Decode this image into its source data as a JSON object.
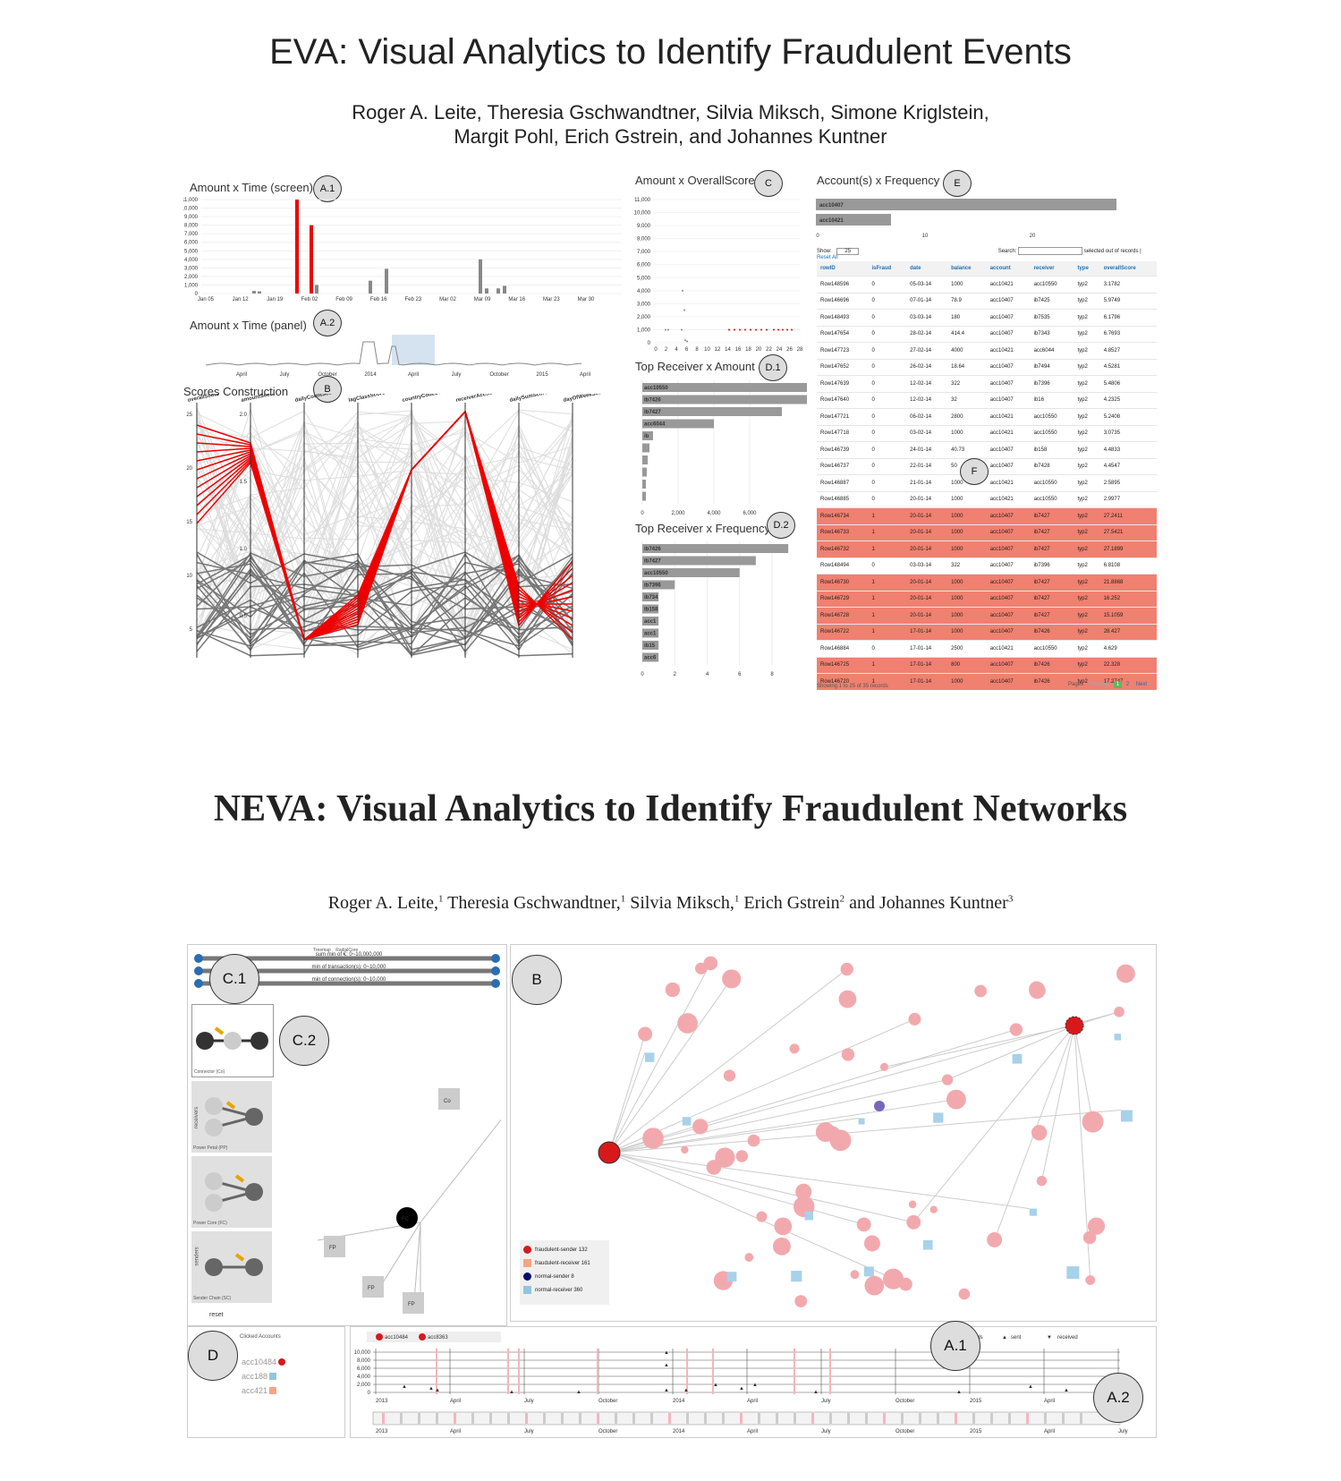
{
  "eva": {
    "title": "EVA: Visual Analytics to Identify Fraudulent Events",
    "authors_line1": "Roger A. Leite, Theresia Gschwandtner, Silvia Miksch, Simone Kriglstein,",
    "authors_line2": "Margit Pohl, Erich Gstrein, and Johannes Kuntner",
    "panels": {
      "a1_title": "Amount x Time (screen)",
      "a2_title": "Amount x Time (panel)",
      "b_title": "Scores Construction",
      "c_title": "Amount x OverallScore",
      "d1_title": "Top Receiver x Amount",
      "d2_title": "Top Receiver x Frequency",
      "e_title": "Account(s) x Frequency"
    },
    "callouts": {
      "a1": "A.1",
      "a2": "A.2",
      "b": "B",
      "c": "C",
      "d1": "D.1",
      "d2": "D.2",
      "e": "E",
      "f": "F"
    },
    "a1_yticks": [
      "11,000",
      "10,000",
      "9,000",
      "8,000",
      "7,000",
      "6,000",
      "5,000",
      "4,000",
      "3,000",
      "2,000",
      "1,000",
      "0"
    ],
    "a1_xticks": [
      "Jan 05",
      "Jan 12",
      "Jan 19",
      "Feb 02",
      "Feb 09",
      "Feb 16",
      "Feb 23",
      "Mar 02",
      "Mar 09",
      "Mar 16",
      "Mar 23",
      "Mar 30"
    ],
    "a2_xticks": [
      "April",
      "July",
      "October",
      "2014",
      "April",
      "July",
      "October",
      "2015",
      "April"
    ],
    "b_axes": [
      "overallScore",
      "amountScore",
      "dailyCountScore",
      "lagClassScore",
      "countryCodeScore",
      "receiverAccScore",
      "dailySumScore",
      "dayOfWeekScore"
    ],
    "b_yticks_first": [
      "25",
      "20",
      "15",
      "10",
      "5"
    ],
    "b_yticks_amount": [
      "2.0",
      "1.5",
      "1.0",
      "0.5"
    ],
    "c_yticks": [
      "11,000",
      "10,000",
      "9,000",
      "8,000",
      "7,000",
      "6,000",
      "5,000",
      "4,000",
      "3,000",
      "2,000",
      "1,000",
      "0"
    ],
    "c_xticks": [
      "0",
      "2",
      "4",
      "6",
      "8",
      "10",
      "12",
      "14",
      "16",
      "18",
      "20",
      "22",
      "24",
      "26",
      "28"
    ],
    "d1_bars": [
      {
        "label": "acc10550",
        "value": 10800
      },
      {
        "label": "ib7426",
        "value": 10400
      },
      {
        "label": "ib7427",
        "value": 7800
      },
      {
        "label": "acc6044",
        "value": 4000
      },
      {
        "label": "ib",
        "value": 600
      },
      {
        "label": "",
        "value": 400
      },
      {
        "label": "",
        "value": 300
      },
      {
        "label": "",
        "value": 250
      },
      {
        "label": "",
        "value": 200
      },
      {
        "label": "",
        "value": 150
      }
    ],
    "d1_xticks": [
      "0",
      "2,000",
      "4,000",
      "6,000"
    ],
    "d2_bars": [
      {
        "label": "ib7426",
        "value": 9
      },
      {
        "label": "ib7427",
        "value": 7
      },
      {
        "label": "acc10550",
        "value": 6
      },
      {
        "label": "ib7396",
        "value": 2
      },
      {
        "label": "ib734",
        "value": 1
      },
      {
        "label": "ib158",
        "value": 1
      },
      {
        "label": "acc1",
        "value": 1
      },
      {
        "label": "acc1",
        "value": 1
      },
      {
        "label": "ib15",
        "value": 1
      },
      {
        "label": "acc6",
        "value": 1
      }
    ],
    "d2_xticks": [
      "0",
      "2",
      "4",
      "6",
      "8"
    ],
    "e_bars": [
      {
        "label": "acc10407",
        "value": 28
      },
      {
        "label": "acc10421",
        "value": 7
      }
    ],
    "e_xticks": [
      "0",
      "10",
      "20"
    ],
    "table_controls": {
      "show_label": "Show:",
      "show_value": "25",
      "search_label": "Search:",
      "selected_text": "selected out of records |",
      "reset_label": "Reset All"
    },
    "table_headers": [
      "rowID",
      "isFraud",
      "date",
      "balance",
      "account",
      "receiver",
      "type",
      "overallScore"
    ],
    "table_rows": [
      {
        "c": [
          "Row148596",
          "0",
          "05-03-14",
          "1000",
          "acc10421",
          "acc10550",
          "typ2",
          "3.1782"
        ],
        "hl": false
      },
      {
        "c": [
          "Row146696",
          "0",
          "07-01-14",
          "78.9",
          "acc10407",
          "ib7425",
          "typ2",
          "5.9749"
        ],
        "hl": false
      },
      {
        "c": [
          "Row148493",
          "0",
          "03-03-14",
          "180",
          "acc10407",
          "ib7535",
          "typ2",
          "6.1796"
        ],
        "hl": false
      },
      {
        "c": [
          "Row147654",
          "0",
          "28-02-14",
          "414.4",
          "acc10407",
          "ib7343",
          "typ2",
          "6.7693"
        ],
        "hl": false
      },
      {
        "c": [
          "Row147723",
          "0",
          "27-02-14",
          "4000",
          "acc10421",
          "acc6044",
          "typ2",
          "4.8527"
        ],
        "hl": false
      },
      {
        "c": [
          "Row147652",
          "0",
          "26-02-14",
          "18.64",
          "acc10407",
          "ib7494",
          "typ2",
          "4.5281"
        ],
        "hl": false
      },
      {
        "c": [
          "Row147639",
          "0",
          "12-02-14",
          "322",
          "acc10407",
          "ib7396",
          "typ2",
          "5.4806"
        ],
        "hl": false
      },
      {
        "c": [
          "Row147640",
          "0",
          "12-02-14",
          "32",
          "acc10407",
          "ib16",
          "typ2",
          "4.2325"
        ],
        "hl": false
      },
      {
        "c": [
          "Row147721",
          "0",
          "06-02-14",
          "2800",
          "acc10421",
          "acc10550",
          "typ2",
          "5.2408"
        ],
        "hl": false
      },
      {
        "c": [
          "Row147718",
          "0",
          "03-02-14",
          "1000",
          "acc10421",
          "acc10550",
          "typ2",
          "3.0735"
        ],
        "hl": false
      },
      {
        "c": [
          "Row146739",
          "0",
          "24-01-14",
          "40.73",
          "acc10407",
          "ib158",
          "typ2",
          "4.4833"
        ],
        "hl": false
      },
      {
        "c": [
          "Row146737",
          "0",
          "22-01-14",
          "50",
          "acc10407",
          "ib7428",
          "typ2",
          "4.4547"
        ],
        "hl": false
      },
      {
        "c": [
          "Row146887",
          "0",
          "21-01-14",
          "1000",
          "acc10421",
          "acc10550",
          "typ2",
          "2.5895"
        ],
        "hl": false
      },
      {
        "c": [
          "Row146885",
          "0",
          "20-01-14",
          "1000",
          "acc10421",
          "acc10550",
          "typ2",
          "2.9977"
        ],
        "hl": false
      },
      {
        "c": [
          "Row146734",
          "1",
          "20-01-14",
          "1000",
          "acc10407",
          "ib7427",
          "typ2",
          "27.2411"
        ],
        "hl": true
      },
      {
        "c": [
          "Row146733",
          "1",
          "20-01-14",
          "1000",
          "acc10407",
          "ib7427",
          "typ2",
          "27.5421"
        ],
        "hl": true
      },
      {
        "c": [
          "Row146732",
          "1",
          "20-01-14",
          "1000",
          "acc10407",
          "ib7427",
          "typ2",
          "27.1899"
        ],
        "hl": true
      },
      {
        "c": [
          "Row148494",
          "0",
          "03-03-14",
          "322",
          "acc10407",
          "ib7396",
          "typ2",
          "6.8108"
        ],
        "hl": false
      },
      {
        "c": [
          "Row146730",
          "1",
          "20-01-14",
          "1000",
          "acc10407",
          "ib7427",
          "typ2",
          "21.8868"
        ],
        "hl": true
      },
      {
        "c": [
          "Row146729",
          "1",
          "20-01-14",
          "1000",
          "acc10407",
          "ib7427",
          "typ2",
          "16.252"
        ],
        "hl": true
      },
      {
        "c": [
          "Row146728",
          "1",
          "20-01-14",
          "1000",
          "acc10407",
          "ib7427",
          "typ2",
          "15.1059"
        ],
        "hl": true
      },
      {
        "c": [
          "Row146722",
          "1",
          "17-01-14",
          "1000",
          "acc10407",
          "ib7426",
          "typ2",
          "28.427"
        ],
        "hl": true
      },
      {
        "c": [
          "Row146884",
          "0",
          "17-01-14",
          "2500",
          "acc10421",
          "acc10550",
          "typ2",
          "4.629"
        ],
        "hl": false
      },
      {
        "c": [
          "Row146725",
          "1",
          "17-01-14",
          "800",
          "acc10407",
          "ib7426",
          "typ2",
          "22.328"
        ],
        "hl": true
      },
      {
        "c": [
          "Row146720",
          "1",
          "17-01-14",
          "1000",
          "acc10407",
          "ib7426",
          "typ2",
          "17.2747"
        ],
        "hl": true
      }
    ],
    "table_footer": {
      "showing": "Showing 1 to 25 of 35 records",
      "pages": "Pages",
      "previous": "Previous",
      "page1": "1",
      "page2": "2",
      "next": "Next"
    }
  },
  "neva": {
    "title": "NEVA: Visual Analytics to Identify Fraudulent Networks",
    "authors": [
      {
        "name": "Roger A. Leite,",
        "sup": "1"
      },
      {
        "name": "Theresia Gschwandtner,",
        "sup": "1"
      },
      {
        "name": "Silvia Miksch,",
        "sup": "1"
      },
      {
        "name": "Erich Gstrein",
        "sup": "2"
      },
      {
        "name": "and Johannes Kuntner",
        "sup": "3"
      }
    ],
    "callouts": {
      "c1": "C.1",
      "c2": "C.2",
      "b": "B",
      "d": "D",
      "a1": "A.1",
      "a2": "A.2"
    },
    "layout_options": {
      "treemap": "Treemap",
      "radialcore": "RadialCore"
    },
    "sliders": [
      "sum min of €: 0~10,000,000",
      "min of transaction(s): 0~10,000",
      "min of connection(s): 0~10,000"
    ],
    "motifs": [
      {
        "label": "Connector (Co)"
      },
      {
        "label": "Power Petal (PP)"
      },
      {
        "label": "Power Core (FC)"
      },
      {
        "label": "Sender Chain (SC)"
      }
    ],
    "side_labels": {
      "receivers": "receivers",
      "senders": "senders"
    },
    "reset_label": "reset",
    "motif_graph_nodes": {
      "co": "Co",
      "fc": "FC",
      "fp1": "FP",
      "fp2": "FP",
      "fp3": "FP"
    },
    "legend": [
      {
        "label": "fraudulent-sender 132",
        "color": "#d7191c",
        "shape": "circle"
      },
      {
        "label": "fraudulent-receiver 161",
        "color": "#f4a582",
        "shape": "square"
      },
      {
        "label": "normal-sender 8",
        "color": "#08086b",
        "shape": "circle"
      },
      {
        "label": "normal-receiver 360",
        "color": "#92c5de",
        "shape": "square"
      }
    ],
    "clicked_accounts_title": "Clicked Accounts",
    "clicked_accounts": [
      {
        "label": "acc10484",
        "color": "#d7191c"
      },
      {
        "label": "acc188",
        "color": "#92c5de"
      },
      {
        "label": "acc421",
        "color": "#f4a582"
      }
    ],
    "timeline_accounts": [
      "acc10484",
      "acc8363"
    ],
    "timeline_legend": {
      "frauds": "frauds",
      "sent": "sent",
      "received": "received"
    },
    "timeline_yticks": [
      "10,000",
      "8,000",
      "6,000",
      "4,000",
      "2,000",
      "0"
    ],
    "timeline_xticks": [
      "2013",
      "April",
      "July",
      "October",
      "2014",
      "April",
      "July",
      "October",
      "2015",
      "April",
      "July"
    ]
  }
}
